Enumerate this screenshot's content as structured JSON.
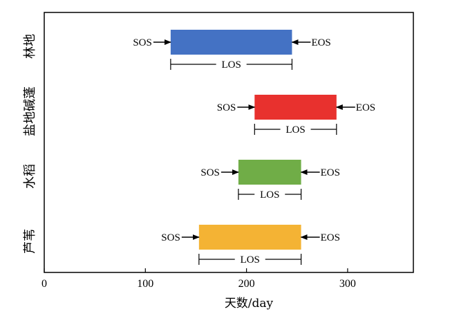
{
  "chart_data": {
    "type": "bar",
    "orientation": "horizontal",
    "subtype": "floating-range",
    "xlabel": "天数/day",
    "ylabel": "",
    "xlim": [
      0,
      365
    ],
    "xticks": [
      0,
      100,
      200,
      300
    ],
    "grid": false,
    "annotation_labels": {
      "start": "SOS",
      "end": "EOS",
      "length": "LOS"
    },
    "categories": [
      "林地",
      "盐地碱蓬",
      "水稻",
      "芦苇"
    ],
    "series": [
      {
        "category": "林地",
        "sos": 125,
        "eos": 245,
        "color": "#4472C4"
      },
      {
        "category": "盐地碱蓬",
        "sos": 208,
        "eos": 289,
        "color": "#E8312E"
      },
      {
        "category": "水稻",
        "sos": 192,
        "eos": 254,
        "color": "#70AD47"
      },
      {
        "category": "芦苇",
        "sos": 153,
        "eos": 254,
        "color": "#F4B334"
      }
    ]
  }
}
